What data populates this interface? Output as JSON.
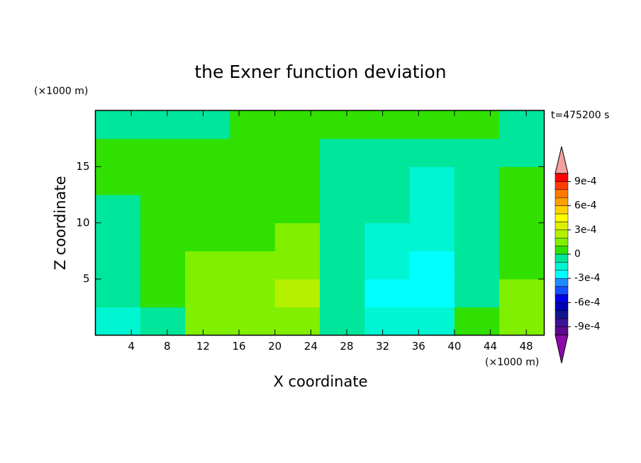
{
  "chart_data": {
    "type": "contour",
    "title": "the Exner function deviation",
    "x_label": "X coordinate",
    "y_label": "Z coordinate",
    "x_unit_label": "(×1000 m)",
    "y_unit_label": "(×1000 m)",
    "annotation": "t=475200 s",
    "xlim": [
      0,
      50
    ],
    "ylim": [
      0,
      20
    ],
    "xticks": [
      4,
      8,
      12,
      16,
      20,
      24,
      28,
      32,
      36,
      40,
      44,
      48
    ],
    "yticks": [
      5,
      10,
      15
    ],
    "x": [
      2.5,
      7.5,
      12.5,
      17.5,
      22.5,
      27.5,
      32.5,
      37.5,
      42.5,
      47.5
    ],
    "y": [
      1.25,
      3.75,
      6.25,
      8.75,
      11.25,
      13.75,
      16.25,
      18.75
    ],
    "z": [
      [
        -0.00015,
        -5e-05,
        0.00015,
        0.00015,
        0.00015,
        -5e-05,
        -0.00015,
        -0.00015,
        5e-05,
        0.00015
      ],
      [
        -5e-05,
        5e-05,
        0.00015,
        0.00015,
        0.00025,
        -5e-05,
        -0.00025,
        -0.00025,
        -5e-05,
        0.00015
      ],
      [
        -5e-05,
        5e-05,
        0.00015,
        0.00015,
        0.00015,
        -5e-05,
        -0.00015,
        -0.00025,
        -5e-05,
        5e-05
      ],
      [
        -5e-05,
        5e-05,
        5e-05,
        5e-05,
        0.00015,
        -5e-05,
        -0.00015,
        -0.00015,
        -5e-05,
        5e-05
      ],
      [
        -5e-05,
        5e-05,
        5e-05,
        5e-05,
        5e-05,
        -5e-05,
        -5e-05,
        -0.00015,
        -5e-05,
        5e-05
      ],
      [
        5e-05,
        5e-05,
        5e-05,
        5e-05,
        5e-05,
        -5e-05,
        -5e-05,
        -0.00015,
        -5e-05,
        5e-05
      ],
      [
        5e-05,
        5e-05,
        5e-05,
        5e-05,
        5e-05,
        -5e-05,
        -5e-05,
        -5e-05,
        -5e-05,
        -5e-05
      ],
      [
        -5e-05,
        -5e-05,
        -5e-05,
        5e-05,
        5e-05,
        5e-05,
        5e-05,
        5e-05,
        5e-05,
        -5e-05
      ]
    ],
    "levels": [
      -0.001,
      -0.0009,
      -0.0008,
      -0.0007,
      -0.0006,
      -0.0005,
      -0.0004,
      -0.0003,
      -0.0002,
      -0.0001,
      0,
      0.0001,
      0.0002,
      0.0003,
      0.0004,
      0.0005,
      0.0006,
      0.0007,
      0.0008,
      0.0009,
      0.001
    ],
    "colors": [
      "#5a0a8c",
      "#3c1496",
      "#14148c",
      "#0000b4",
      "#0000e6",
      "#1450ff",
      "#1e8cff",
      "#00ffff",
      "#00f5d2",
      "#00e69b",
      "#30e000",
      "#80f000",
      "#b4f000",
      "#dcf000",
      "#ffff00",
      "#ffd200",
      "#ffa000",
      "#ff7800",
      "#ff3c00",
      "#ff0000"
    ],
    "extend_colors": [
      "#8c0aaa",
      "#f4a0a0"
    ],
    "colorbar_ticks": [
      {
        "value": -0.0009,
        "label": "-9e-4"
      },
      {
        "value": -0.0006,
        "label": "-6e-4"
      },
      {
        "value": -0.0003,
        "label": "-3e-4"
      },
      0,
      {
        "value": 0.0003,
        "label": "3e-4"
      },
      {
        "value": 0.0006,
        "label": "6e-4"
      },
      {
        "value": 0.0009,
        "label": "9e-4"
      }
    ]
  }
}
